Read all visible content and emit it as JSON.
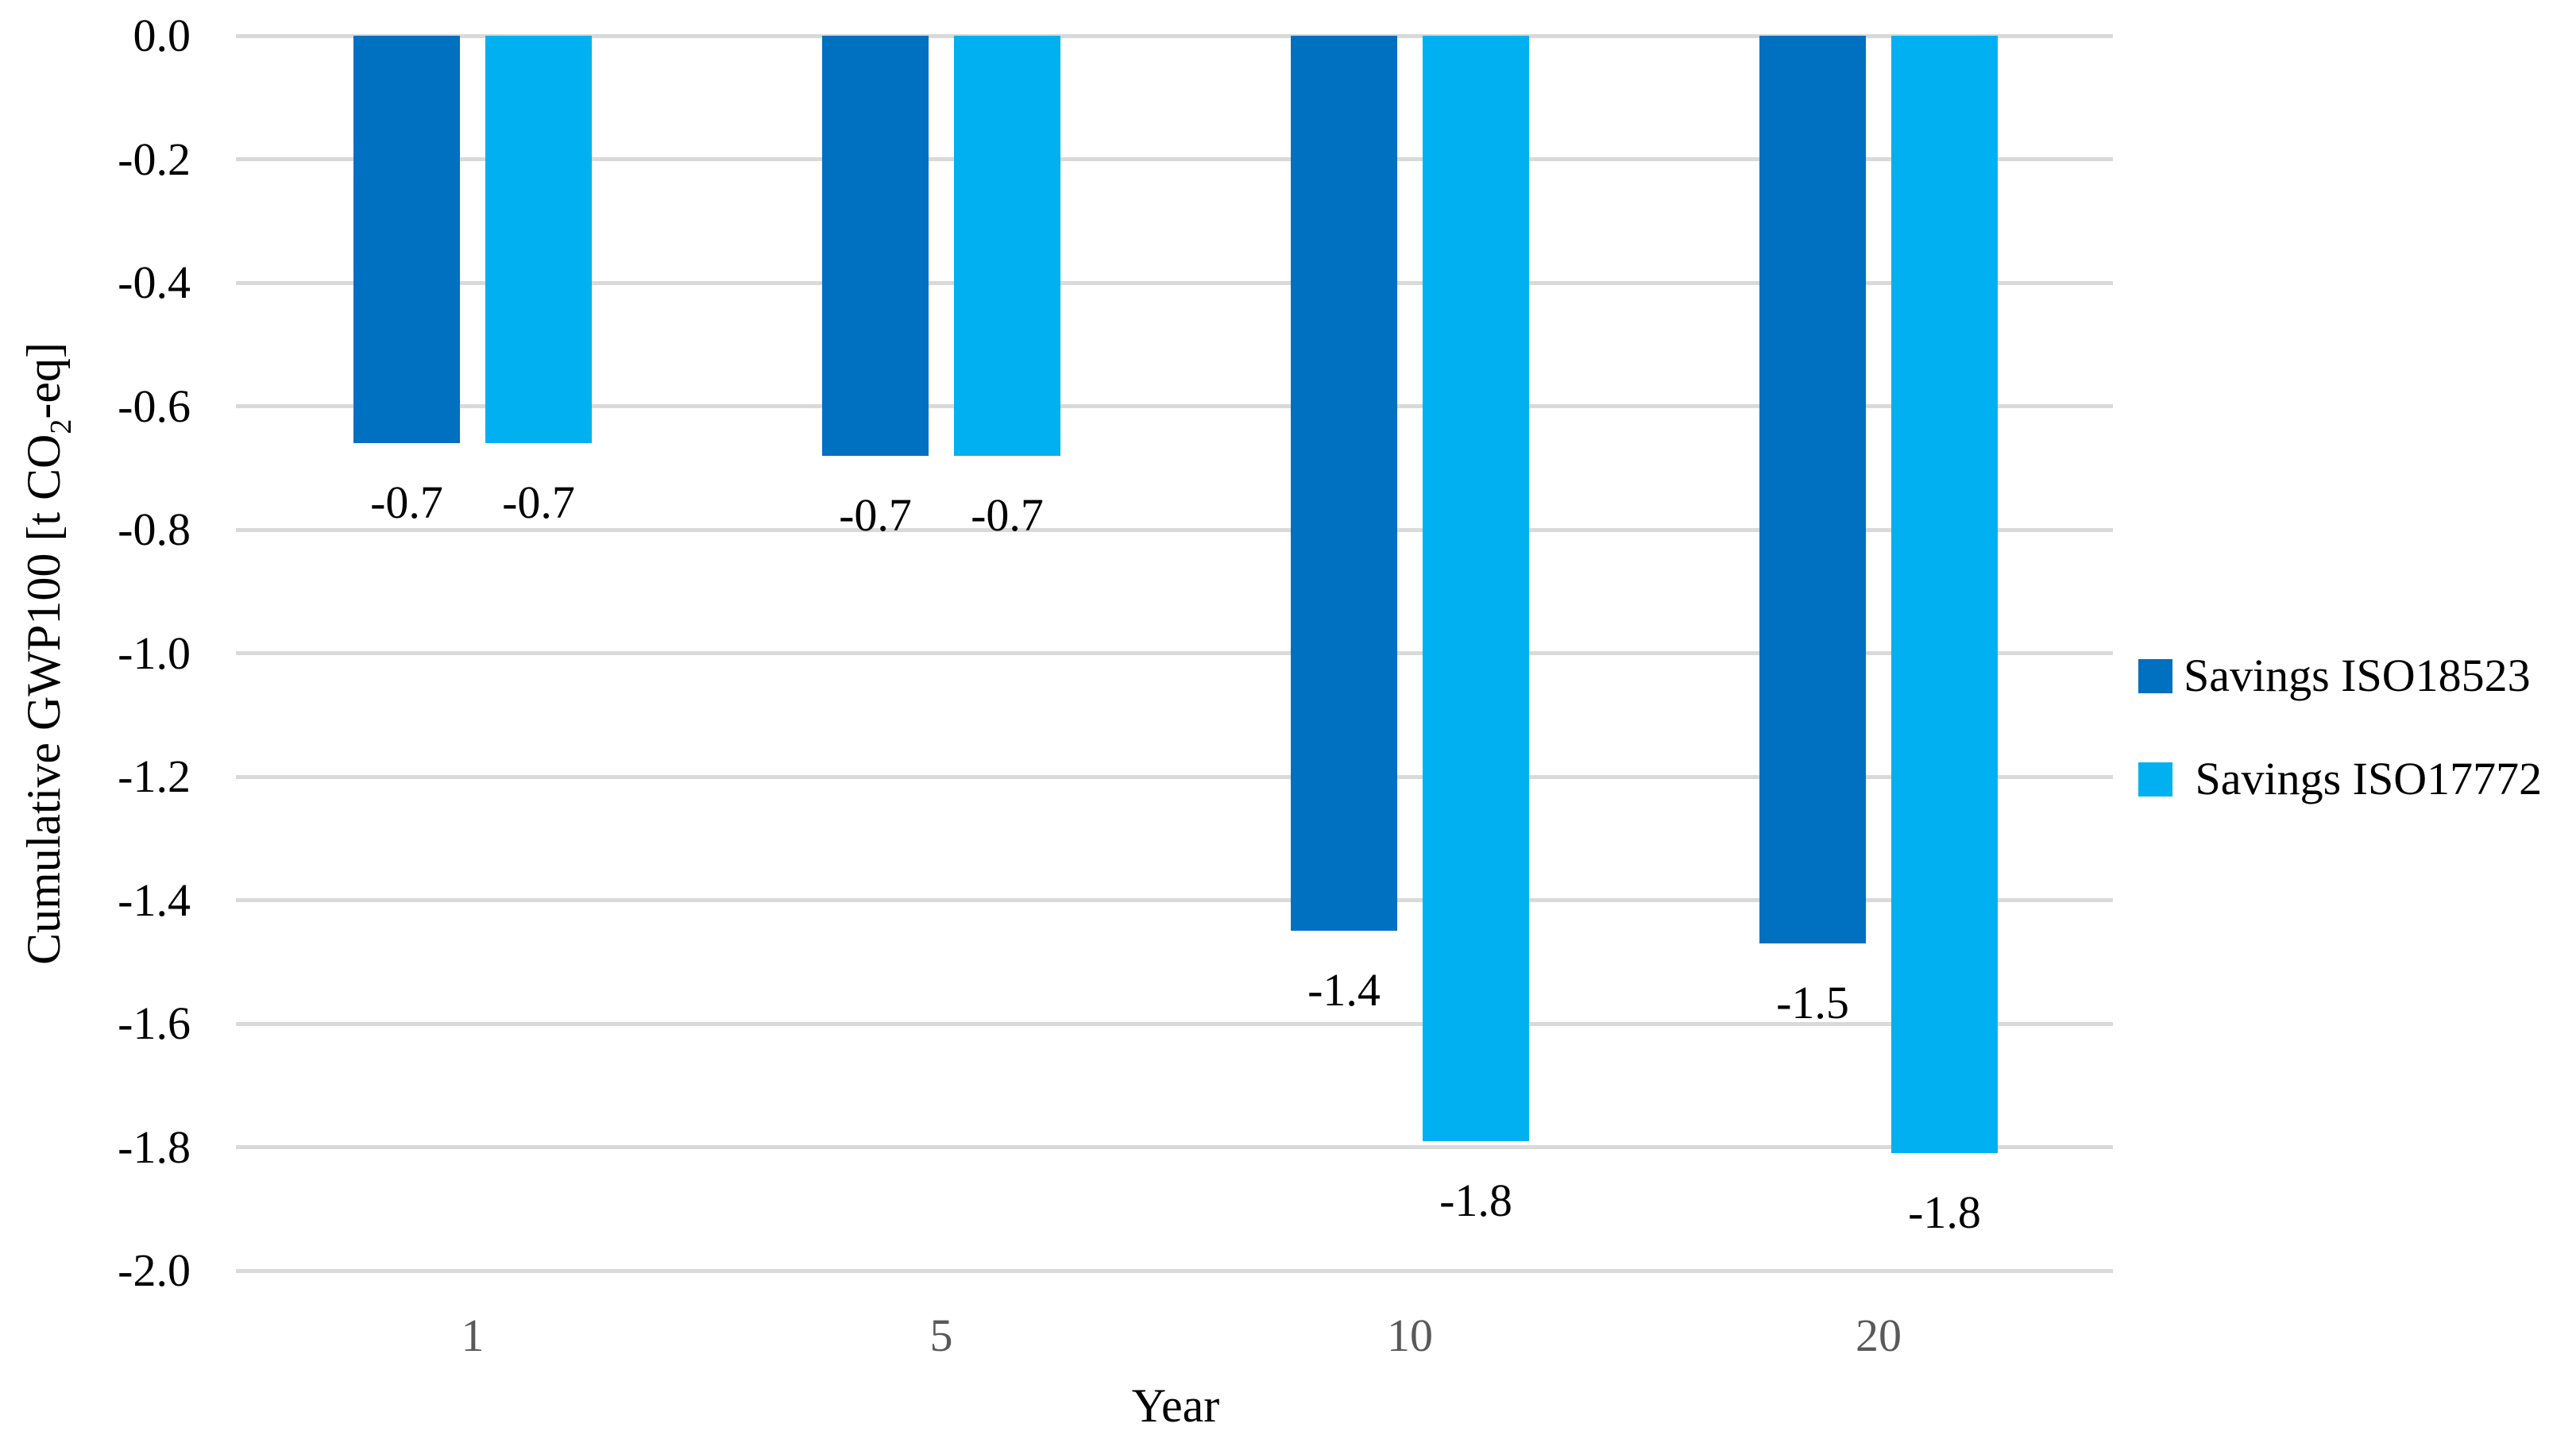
{
  "y_axis": {
    "title_pre": "Cumulative GWP100 [t CO",
    "title_sub": "2",
    "title_post": "-eq]",
    "tick_labels": [
      "0.0",
      "-0.2",
      "-0.4",
      "-0.6",
      "-0.8",
      "-1.0",
      "-1.2",
      "-1.4",
      "-1.6",
      "-1.8",
      "-2.0"
    ]
  },
  "x_axis": {
    "title": "Year",
    "tick_labels": [
      "1",
      "5",
      "10",
      "20"
    ]
  },
  "legend": {
    "items": [
      {
        "label": "Savings ISO18523",
        "color": "#0070C0"
      },
      {
        "label": " Savings ISO17772",
        "color": "#00B0F0"
      }
    ]
  },
  "chart_data": {
    "type": "bar",
    "title": "",
    "xlabel": "Year",
    "ylabel": "Cumulative GWP100 [t CO2-eq]",
    "categories": [
      "1",
      "5",
      "10",
      "20"
    ],
    "series": [
      {
        "name": "Savings ISO18523",
        "color": "#0070C0",
        "values": [
          -0.66,
          -0.68,
          -1.45,
          -1.47
        ],
        "data_labels": [
          "-0.7",
          "-0.7",
          "-1.4",
          "-1.5"
        ]
      },
      {
        "name": "Savings ISO17772",
        "color": "#00B0F0",
        "values": [
          -0.66,
          -0.68,
          -1.79,
          -1.81
        ],
        "data_labels": [
          "-0.7",
          "-0.7",
          "-1.8",
          "-1.8"
        ]
      }
    ],
    "ylim": [
      -2.0,
      0.0
    ],
    "ytick_step": 0.2,
    "y_tick_labels": [
      "0.0",
      "-0.2",
      "-0.4",
      "-0.6",
      "-0.8",
      "-1.0",
      "-1.2",
      "-1.4",
      "-1.6",
      "-1.8",
      "-2.0"
    ],
    "grid": true,
    "legend_position": "right",
    "colors": {
      "gridline": "#D9D9D9",
      "x_tick_label": "#595959",
      "y_tick_label": "#000000",
      "data_label": "#000000"
    }
  }
}
